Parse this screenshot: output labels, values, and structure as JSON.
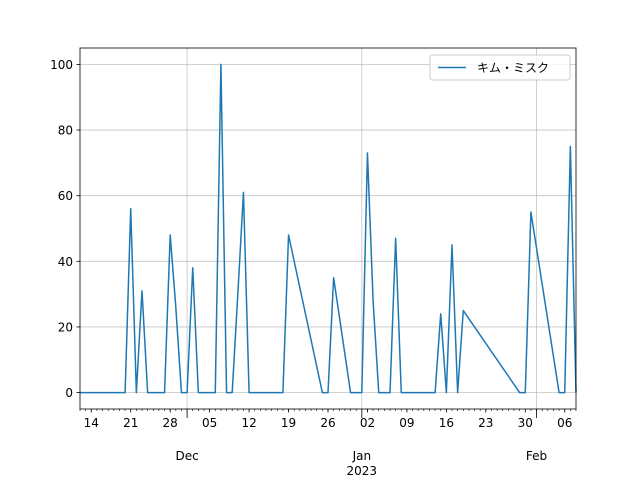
{
  "chart_data": {
    "type": "line",
    "title": "",
    "xlabel": "",
    "ylabel": "",
    "legend_position": "top-right",
    "grid": true,
    "line_color": "#1f77b4",
    "xlim": [
      "2022-11-12",
      "2023-02-08"
    ],
    "ylim": [
      -5,
      105
    ],
    "y_ticks": [
      0,
      20,
      40,
      60,
      80,
      100
    ],
    "x_ticks": [
      {
        "date": "2022-11-14",
        "label": "14"
      },
      {
        "date": "2022-11-21",
        "label": "21"
      },
      {
        "date": "2022-11-28",
        "label": "28"
      },
      {
        "date": "2022-12-05",
        "label": "05"
      },
      {
        "date": "2022-12-12",
        "label": "12"
      },
      {
        "date": "2022-12-19",
        "label": "19"
      },
      {
        "date": "2022-12-26",
        "label": "26"
      },
      {
        "date": "2023-01-02",
        "label": "02"
      },
      {
        "date": "2023-01-09",
        "label": "09"
      },
      {
        "date": "2023-01-16",
        "label": "16"
      },
      {
        "date": "2023-01-23",
        "label": "23"
      },
      {
        "date": "2023-01-30",
        "label": "30"
      },
      {
        "date": "2023-02-06",
        "label": "06"
      }
    ],
    "month_labels": [
      {
        "date": "2022-12-01",
        "label": "Dec"
      },
      {
        "date": "2023-01-01",
        "label": "Jan",
        "year": "2023"
      },
      {
        "date": "2023-02-01",
        "label": "Feb"
      }
    ],
    "series": [
      {
        "name": "キム・ミスク",
        "x": [
          "2022-11-12",
          "2022-11-20",
          "2022-11-21",
          "2022-11-22",
          "2022-11-23",
          "2022-11-24",
          "2022-11-27",
          "2022-11-28",
          "2022-11-29",
          "2022-11-30",
          "2022-12-01",
          "2022-12-02",
          "2022-12-03",
          "2022-12-06",
          "2022-12-07",
          "2022-12-08",
          "2022-12-09",
          "2022-12-10",
          "2022-12-11",
          "2022-12-12",
          "2022-12-17",
          "2022-12-18",
          "2022-12-19",
          "2022-12-25",
          "2022-12-26",
          "2022-12-27",
          "2022-12-30",
          "2023-01-01",
          "2023-01-02",
          "2023-01-03",
          "2023-01-04",
          "2023-01-06",
          "2023-01-07",
          "2023-01-08",
          "2023-01-13",
          "2023-01-14",
          "2023-01-15",
          "2023-01-16",
          "2023-01-17",
          "2023-01-18",
          "2023-01-19",
          "2023-01-29",
          "2023-01-30",
          "2023-01-31",
          "2023-02-05",
          "2023-02-06",
          "2023-02-07",
          "2023-02-08"
        ],
        "y": [
          0,
          0,
          56,
          0,
          31,
          0,
          0,
          48,
          26,
          0,
          0,
          38,
          0,
          0,
          100,
          0,
          0,
          30,
          61,
          0,
          0,
          0,
          48,
          0,
          0,
          35,
          0,
          0,
          73,
          28,
          0,
          0,
          47,
          0,
          0,
          0,
          24,
          0,
          45,
          0,
          25,
          0,
          0,
          55,
          0,
          0,
          75,
          0
        ]
      }
    ]
  }
}
